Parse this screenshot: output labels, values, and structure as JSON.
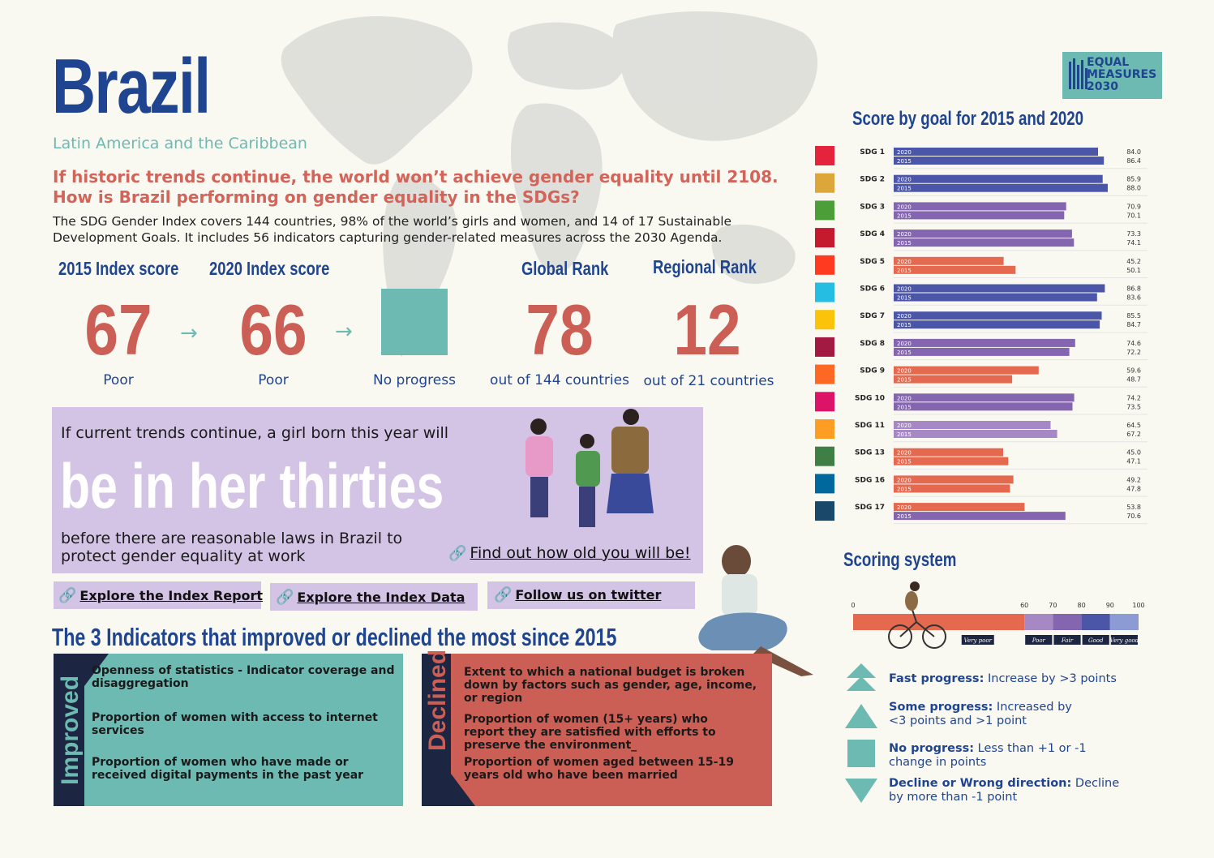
{
  "header": {
    "country": "Brazil",
    "region": "Latin America and the Caribbean",
    "question_line1": "If historic trends continue, the world won’t achieve gender equality until 2108.",
    "question_line2": "How is Brazil performing on gender equality in the SDGs?",
    "description": "The SDG Gender Index covers 144 countries, 98% of the world’s girls and women, and 14 of 17 Sustainable Development Goals. It includes 56 indicators capturing gender-related measures across the 2030 Agenda."
  },
  "logo": {
    "line1": "EQUAL",
    "line2": "MEASURES",
    "line3": "2030"
  },
  "scores": {
    "index2015_label": "2015 Index score",
    "index2015_value": "67",
    "index2015_grade": "Poor",
    "index2020_label": "2020  Index score",
    "index2020_value": "66",
    "index2020_grade": "Poor",
    "progress_label": "No progress",
    "global_label": "Global Rank",
    "global_value": "78",
    "global_sub": "out of 144 countries",
    "regional_label": "Regional Rank",
    "regional_value": "12",
    "regional_sub": "out of 21 countries",
    "arrow": "→"
  },
  "girl": {
    "intro": "If current trends continue, a girl born this year will",
    "big": "be in her thirties",
    "end": "before there are reasonable laws in Brazil to protect gender equality at work",
    "find_link": "Find out how old you will be!"
  },
  "links": {
    "report": "Explore the Index Report",
    "data": "Explore the Index Data",
    "twitter": "Follow us on twitter",
    "chain": "🔗"
  },
  "indicators": {
    "heading": "The 3 Indicators that improved or declined the most since 2015",
    "improved_label": "Improved",
    "declined_label": "Declined",
    "improved": [
      "Openness of statistics - Indicator coverage and disaggregation",
      "Proportion of women with access to internet services",
      "Proportion of women who have made or received digital payments in the past year"
    ],
    "declined": [
      "Extent to which a national budget is broken down by factors such as gender, age, income, or region",
      "Proportion of women (15+ years) who report they are satisfied with efforts to preserve the environment_",
      "Proportion of women aged between 15-19 years old who have been married"
    ]
  },
  "chart_data": {
    "type": "bar",
    "title": "Score by goal for 2015 and 2020",
    "categories": [
      "SDG 1",
      "SDG 2",
      "SDG 3",
      "SDG 4",
      "SDG 5",
      "SDG 6",
      "SDG 7",
      "SDG 8",
      "SDG 9",
      "SDG 10",
      "SDG 11",
      "SDG 13",
      "SDG 16",
      "SDG 17"
    ],
    "series": [
      {
        "name": "2020",
        "values": [
          84.0,
          85.9,
          70.9,
          73.3,
          45.2,
          86.8,
          85.5,
          74.6,
          59.6,
          74.2,
          64.5,
          45.0,
          49.2,
          53.8
        ]
      },
      {
        "name": "2015",
        "values": [
          86.4,
          88.0,
          70.1,
          74.1,
          50.1,
          83.6,
          84.7,
          72.2,
          48.7,
          73.5,
          67.2,
          47.1,
          47.8,
          70.6
        ]
      }
    ],
    "value_labels_2020": [
      "84.0",
      "85.9",
      "70.9",
      "73.3",
      "45.2",
      "86.8",
      "85.5",
      "74.6",
      "59.6",
      "74.2",
      "64.5",
      "45.0",
      "49.2",
      "53.8"
    ],
    "value_labels_2015": [
      "86.4",
      "88.0",
      "70.1",
      "74.1",
      "50.1",
      "83.6",
      "84.7",
      "72.2",
      "48.7",
      "73.5",
      "67.2",
      "47.1",
      "47.8",
      "70.6"
    ],
    "icon_colors": [
      "#e5243b",
      "#dda63a",
      "#4c9f38",
      "#c5192d",
      "#ff3a21",
      "#26bde2",
      "#fcc30b",
      "#a21942",
      "#fd6925",
      "#dd1367",
      "#fd9d24",
      "#3f7e44",
      "#00689d",
      "#19486a"
    ],
    "band_colors": {
      "very_poor": "#e4694f",
      "poor": "#a689c4",
      "fair": "#8465b0",
      "good": "#4b56a8",
      "very_good": "#8c9bd4"
    },
    "xlim": [
      0,
      100
    ]
  },
  "scoring": {
    "title": "Scoring system",
    "ticks": [
      "0",
      "60",
      "70",
      "80",
      "90",
      "100"
    ],
    "tick_values": [
      0,
      60,
      70,
      80,
      90,
      100
    ],
    "bands": [
      {
        "label": "Very poor",
        "from": 0,
        "to": 60,
        "color": "#e4694f"
      },
      {
        "label": "Poor",
        "from": 60,
        "to": 70,
        "color": "#a689c4"
      },
      {
        "label": "Fair",
        "from": 70,
        "to": 80,
        "color": "#8465b0"
      },
      {
        "label": "Good",
        "from": 80,
        "to": 90,
        "color": "#4b56a8"
      },
      {
        "label": "Very good",
        "from": 90,
        "to": 100,
        "color": "#8c9bd4"
      }
    ],
    "legend": [
      {
        "key": "Fast progress:",
        "text": " Increase by >3 points"
      },
      {
        "key": "Some progress:",
        "text": " Increased by <3 points and >1 point"
      },
      {
        "key": "No progress:",
        "text": " Less than +1 or -1 change in points"
      },
      {
        "key": "Decline or Wrong direction:",
        "text": " Decline by more than -1 point"
      }
    ]
  },
  "colors": {
    "navy": "#1f4591",
    "coral": "#cc5f55",
    "teal": "#6cbab2",
    "lavender": "#d3c3e5",
    "dark": "#1c2542"
  }
}
